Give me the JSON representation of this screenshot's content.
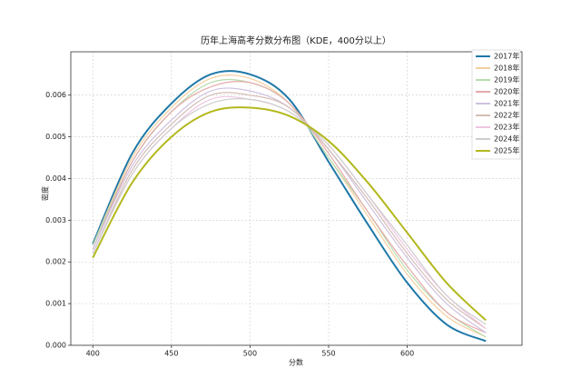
{
  "chart_data": {
    "type": "line",
    "title": "历年上海高考分数分布图（KDE，400分以上）",
    "xlabel": "分数",
    "ylabel": "密度",
    "x": [
      400,
      425,
      450,
      475,
      500,
      525,
      550,
      575,
      600,
      625,
      650
    ],
    "xlim": [
      386,
      673
    ],
    "ylim": [
      0,
      0.00704
    ],
    "xticks": [
      400,
      450,
      500,
      550,
      600
    ],
    "yticks": [
      {
        "value": 0,
        "label": "0.000"
      },
      0.001,
      0.002,
      0.003,
      0.004,
      0.005,
      0.006
    ],
    "grid": true,
    "legend": "upper right",
    "series": [
      {
        "name": "2017年",
        "color": "#1f78a8",
        "values": [
          0.00243,
          0.0046,
          0.0058,
          0.0065,
          0.0065,
          0.0059,
          0.0044,
          0.0029,
          0.0015,
          0.0005,
          0.0001
        ]
      },
      {
        "name": "2018年",
        "color": "#f3cf9e",
        "values": [
          0.0024,
          0.0045,
          0.0057,
          0.0064,
          0.0064,
          0.0058,
          0.0045,
          0.0031,
          0.0017,
          0.0007,
          0.0002
        ]
      },
      {
        "name": "2019年",
        "color": "#b7dcae",
        "values": [
          0.0024,
          0.0044,
          0.0056,
          0.0063,
          0.0063,
          0.0058,
          0.0045,
          0.0032,
          0.0018,
          0.0008,
          0.0002
        ]
      },
      {
        "name": "2020年",
        "color": "#e6a9a9",
        "values": [
          0.0023,
          0.0044,
          0.0056,
          0.0062,
          0.0063,
          0.0058,
          0.0046,
          0.0032,
          0.0019,
          0.0008,
          0.0003
        ]
      },
      {
        "name": "2021年",
        "color": "#cfc1de",
        "values": [
          0.0023,
          0.0043,
          0.0054,
          0.0061,
          0.0061,
          0.0057,
          0.0047,
          0.0034,
          0.0021,
          0.001,
          0.0003
        ]
      },
      {
        "name": "2022年",
        "color": "#d5bdb6",
        "values": [
          0.0022,
          0.0042,
          0.0053,
          0.006,
          0.006,
          0.0057,
          0.0047,
          0.0035,
          0.0022,
          0.0011,
          0.0004
        ]
      },
      {
        "name": "2023年",
        "color": "#efc5e0",
        "values": [
          0.0022,
          0.0041,
          0.0052,
          0.0059,
          0.0059,
          0.0056,
          0.0048,
          0.0036,
          0.0023,
          0.0012,
          0.0004
        ]
      },
      {
        "name": "2024年",
        "color": "#cdcdcd",
        "values": [
          0.0022,
          0.0041,
          0.0052,
          0.0058,
          0.0059,
          0.0056,
          0.0048,
          0.0036,
          0.0024,
          0.0012,
          0.0005
        ]
      },
      {
        "name": "2025年",
        "color": "#b3b81e",
        "values": [
          0.0021,
          0.0039,
          0.005,
          0.0056,
          0.0057,
          0.0055,
          0.0049,
          0.0039,
          0.0027,
          0.0015,
          0.0006
        ]
      }
    ]
  }
}
